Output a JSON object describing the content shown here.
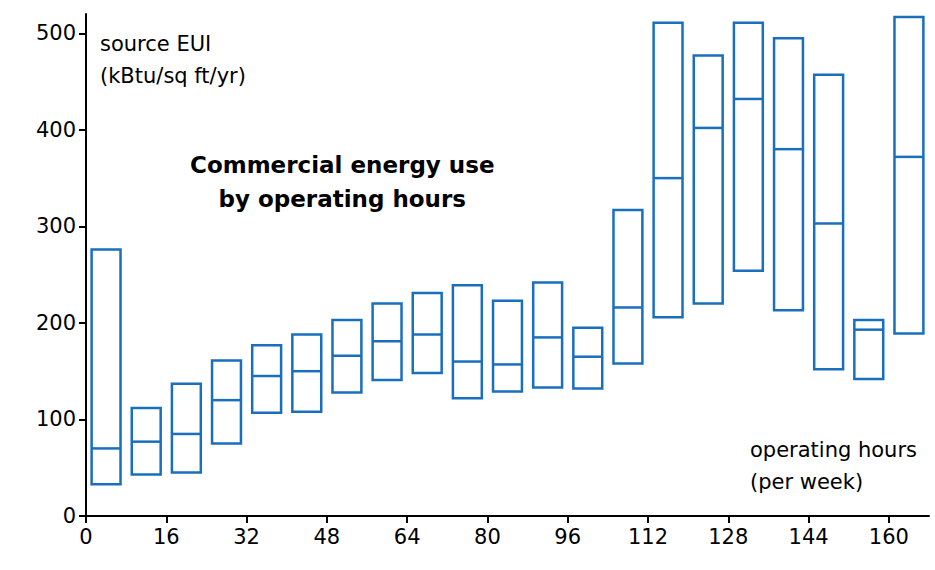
{
  "chart_data": {
    "type": "floating_box",
    "title": "Commercial energy use\nby operating hours",
    "y_label": "source EUI\n(kBtu/sq ft/yr)",
    "x_label": "operating hours\n(per week)",
    "x": [
      4,
      12,
      20,
      28,
      36,
      44,
      52,
      60,
      68,
      76,
      84,
      92,
      100,
      108,
      116,
      124,
      132,
      140,
      148,
      156,
      164
    ],
    "low": [
      33,
      43,
      45,
      75,
      107,
      108,
      128,
      141,
      148,
      122,
      129,
      133,
      132,
      158,
      206,
      220,
      254,
      213,
      152,
      142,
      189
    ],
    "median": [
      70,
      77,
      85,
      120,
      145,
      150,
      166,
      181,
      188,
      160,
      157,
      185,
      165,
      216,
      350,
      402,
      432,
      380,
      303,
      193,
      372
    ],
    "high": [
      276,
      112,
      137,
      161,
      177,
      188,
      203,
      220,
      231,
      239,
      223,
      242,
      195,
      317,
      511,
      477,
      511,
      495,
      457,
      203,
      517
    ],
    "color": "#1a6fbd",
    "xlim": [
      0,
      168
    ],
    "xticks": [
      0,
      16,
      32,
      48,
      64,
      80,
      96,
      112,
      128,
      144,
      160
    ],
    "ylim": [
      0,
      520
    ],
    "yticks": [
      0,
      100,
      200,
      300,
      400,
      500
    ],
    "grid": false
  }
}
